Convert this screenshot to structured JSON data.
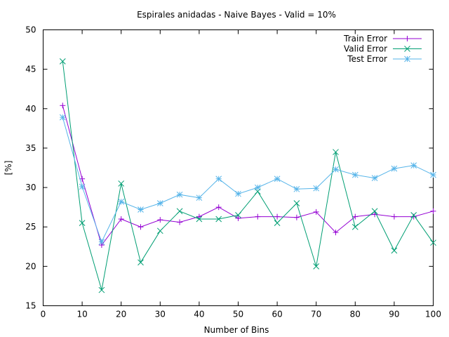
{
  "chart_data": {
    "type": "line",
    "title": "Espirales anidadas - Naive Bayes - Valid = 10%",
    "xlabel": "Number of Bins",
    "ylabel": "[%]",
    "xlim": [
      0,
      100
    ],
    "ylim": [
      15,
      50
    ],
    "xticks": [
      0,
      10,
      20,
      30,
      40,
      50,
      60,
      70,
      80,
      90,
      100
    ],
    "yticks": [
      15,
      20,
      25,
      30,
      35,
      40,
      45,
      50
    ],
    "grid": false,
    "legend_position": "top-right",
    "x": [
      5,
      10,
      15,
      20,
      25,
      30,
      35,
      40,
      45,
      50,
      55,
      60,
      65,
      70,
      75,
      80,
      85,
      90,
      95,
      100
    ],
    "series": [
      {
        "name": "Train Error",
        "color": "#9400d3",
        "marker": "plus",
        "values": [
          40.4,
          31.1,
          22.7,
          26.0,
          25.0,
          25.9,
          25.6,
          26.3,
          27.5,
          26.1,
          26.3,
          26.3,
          26.2,
          26.9,
          24.3,
          26.3,
          26.6,
          26.3,
          26.3,
          27.0
        ]
      },
      {
        "name": "Valid Error",
        "color": "#009e73",
        "marker": "cross",
        "values": [
          46.0,
          25.5,
          17.0,
          30.5,
          20.5,
          24.5,
          27.0,
          26.0,
          26.0,
          26.5,
          29.5,
          25.5,
          28.0,
          20.0,
          34.5,
          25.0,
          27.0,
          22.0,
          26.5,
          23.0
        ]
      },
      {
        "name": "Test Error",
        "color": "#56b4e9",
        "marker": "star",
        "values": [
          38.9,
          30.1,
          23.1,
          28.2,
          27.2,
          28.0,
          29.1,
          28.7,
          31.1,
          29.2,
          30.0,
          31.1,
          29.8,
          29.9,
          32.3,
          31.6,
          31.2,
          32.4,
          32.8,
          31.6
        ]
      }
    ]
  }
}
